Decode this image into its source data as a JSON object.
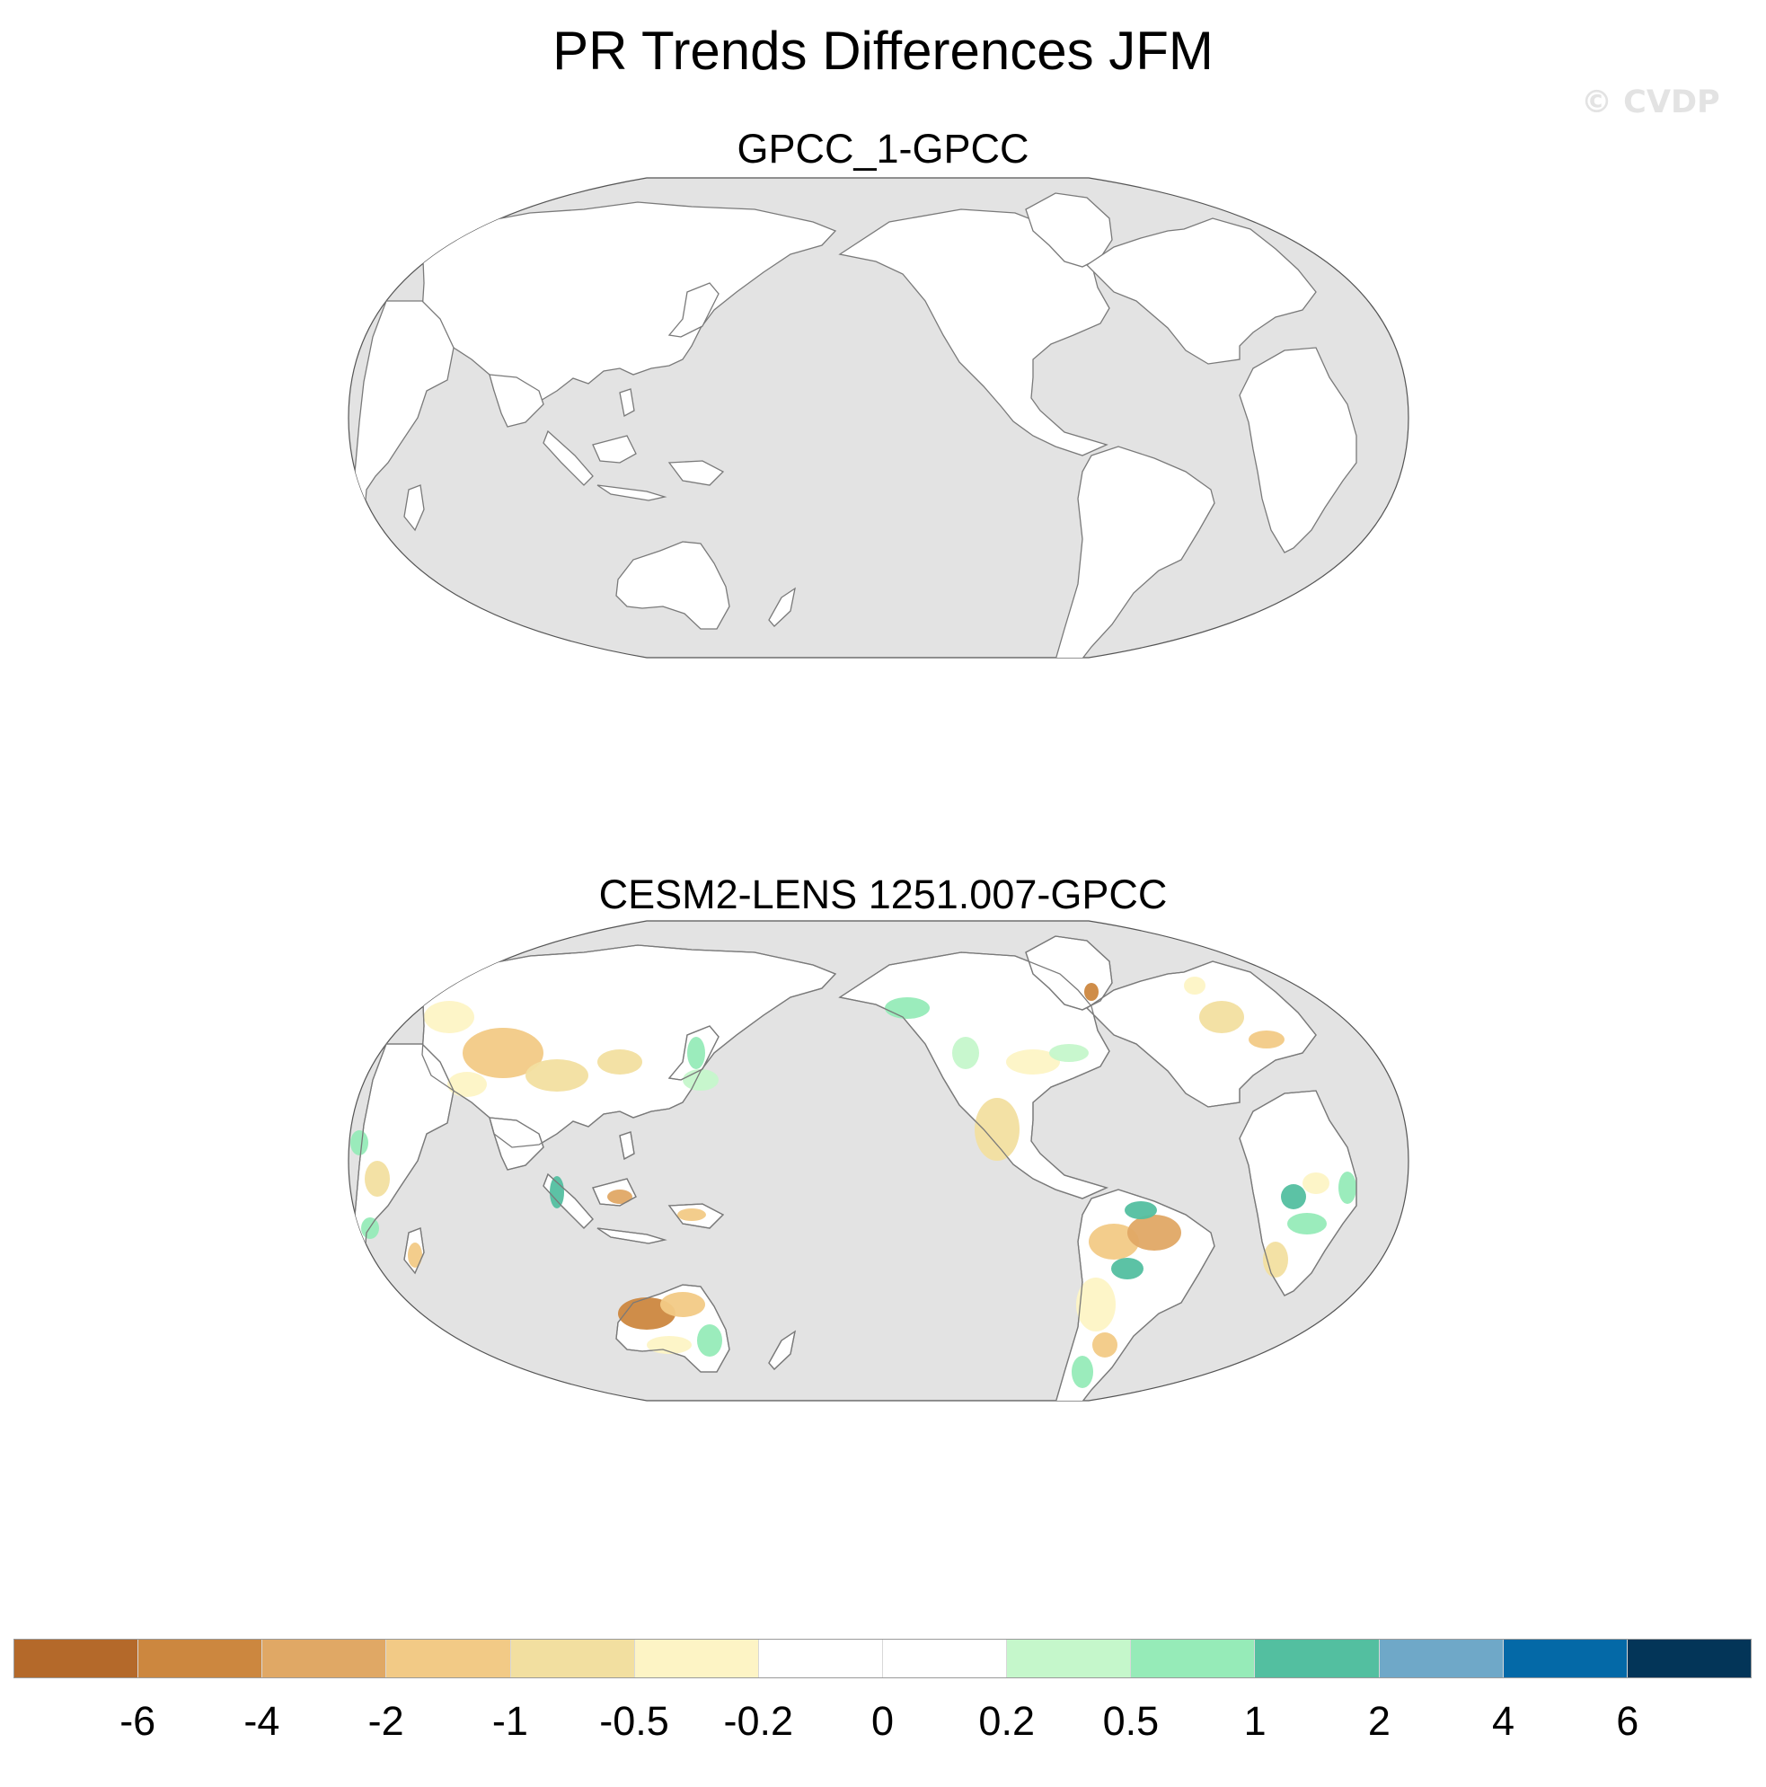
{
  "title": "PR Trends Differences JFM",
  "watermark": "© CVDP",
  "panels": [
    {
      "title": "GPCC_1-GPCC"
    },
    {
      "title": "CESM2-LENS 1251.007-GPCC"
    }
  ],
  "colors": {
    "ocean": "#e3e3e3",
    "land": "#ffffff",
    "coast": "#7a7a7a"
  },
  "colorbar": {
    "colors": [
      "#b4692a",
      "#cc873f",
      "#e0a865",
      "#f2ca86",
      "#f2dfa0",
      "#fdf4c5",
      "#ffffff",
      "#ffffff",
      "#c5f7cb",
      "#96ebb8",
      "#53bfa0",
      "#6fa8c8",
      "#0469a7",
      "#033558"
    ],
    "labels": [
      "-6",
      "-4",
      "-2",
      "-1",
      "-0.5",
      "-0.2",
      "0",
      "0.2",
      "0.5",
      "1",
      "2",
      "4",
      "6"
    ]
  }
}
